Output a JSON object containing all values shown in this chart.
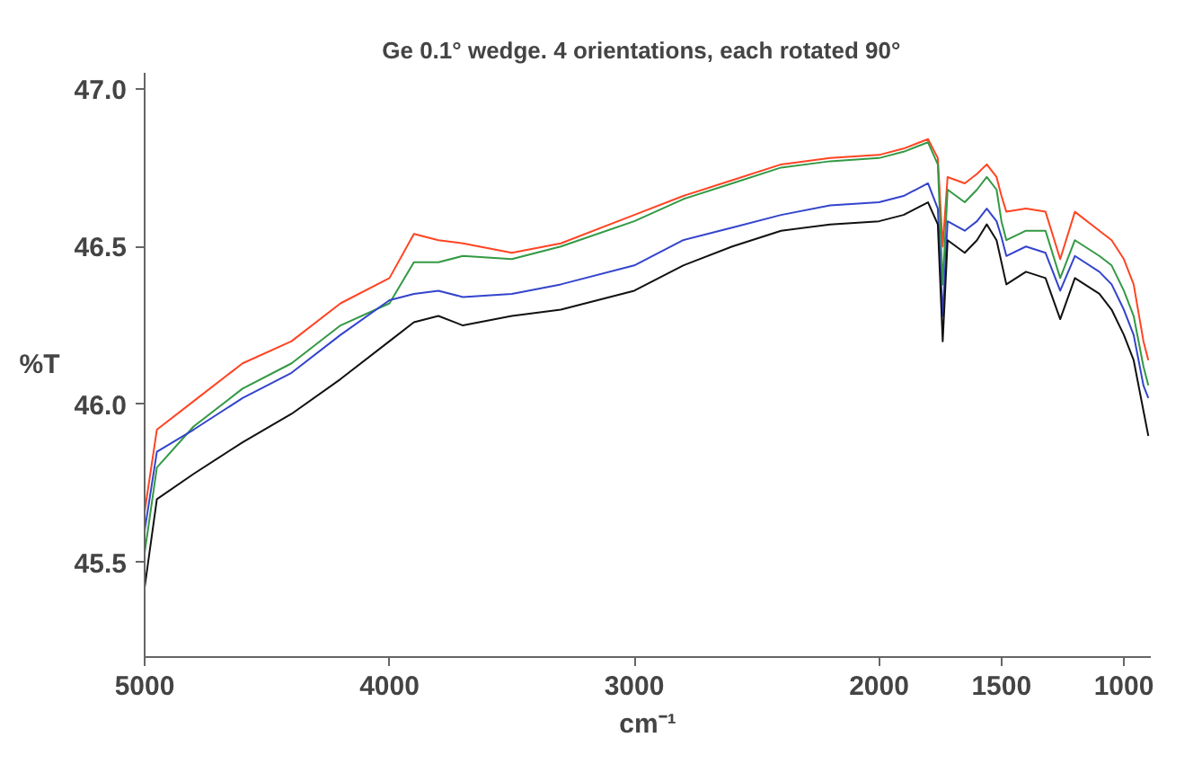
{
  "chart_data": {
    "type": "line",
    "title": "Ge 0.1° wedge.  4 orientations, each  rotated 90°",
    "xlabel": "cm⁻¹",
    "ylabel": "%T",
    "x": [
      5000,
      4950,
      4800,
      4600,
      4400,
      4200,
      4000,
      3900,
      3800,
      3700,
      3500,
      3300,
      3000,
      2800,
      2600,
      2400,
      2200,
      2000,
      1900,
      1800,
      1760,
      1740,
      1720,
      1650,
      1600,
      1560,
      1520,
      1500,
      1480,
      1400,
      1320,
      1260,
      1200,
      1100,
      1050,
      1000,
      960,
      920,
      900
    ],
    "series": [
      {
        "color": "#ff4422",
        "values": [
          45.66,
          45.92,
          46.01,
          46.13,
          46.2,
          46.32,
          46.4,
          46.54,
          46.52,
          46.51,
          46.48,
          46.51,
          46.6,
          46.66,
          46.71,
          46.76,
          46.78,
          46.79,
          46.81,
          46.84,
          46.78,
          46.5,
          46.72,
          46.7,
          46.73,
          46.76,
          46.72,
          46.66,
          46.61,
          46.62,
          46.61,
          46.46,
          46.61,
          46.55,
          46.52,
          46.46,
          46.38,
          46.2,
          46.14
        ]
      },
      {
        "color": "#339944",
        "values": [
          45.53,
          45.8,
          45.93,
          46.05,
          46.13,
          46.25,
          46.32,
          46.45,
          46.45,
          46.47,
          46.46,
          46.5,
          46.58,
          46.65,
          46.7,
          46.75,
          46.77,
          46.78,
          46.8,
          46.83,
          46.76,
          46.38,
          46.68,
          46.64,
          46.68,
          46.72,
          46.68,
          46.58,
          46.52,
          46.55,
          46.55,
          46.4,
          46.52,
          46.47,
          46.44,
          46.36,
          46.28,
          46.12,
          46.06
        ]
      },
      {
        "color": "#3344cc",
        "values": [
          45.6,
          45.85,
          45.92,
          46.02,
          46.1,
          46.22,
          46.33,
          46.35,
          46.36,
          46.34,
          46.35,
          46.38,
          46.44,
          46.52,
          46.56,
          46.6,
          46.63,
          46.64,
          46.66,
          46.7,
          46.62,
          46.28,
          46.58,
          46.55,
          46.58,
          46.62,
          46.58,
          46.53,
          46.47,
          46.5,
          46.48,
          46.36,
          46.47,
          46.42,
          46.38,
          46.3,
          46.22,
          46.06,
          46.02
        ]
      },
      {
        "color": "#111111",
        "values": [
          45.42,
          45.7,
          45.78,
          45.88,
          45.97,
          46.08,
          46.2,
          46.26,
          46.28,
          46.25,
          46.28,
          46.3,
          46.36,
          46.44,
          46.5,
          46.55,
          46.57,
          46.58,
          46.6,
          46.64,
          46.57,
          46.2,
          46.52,
          46.48,
          46.52,
          46.57,
          46.52,
          46.45,
          46.38,
          46.42,
          46.4,
          46.27,
          46.4,
          46.35,
          46.3,
          46.22,
          46.14,
          45.98,
          45.9
        ]
      }
    ],
    "xlim": [
      5000,
      890
    ],
    "xticks": [
      5000,
      4000,
      3000,
      2000,
      1500,
      1000
    ],
    "ylim": [
      45.2,
      47.05
    ],
    "yticks": [
      {
        "value": 45.5,
        "label": "45.5"
      },
      {
        "value": 46.0,
        "label": "46.0"
      },
      {
        "value": 46.5,
        "label": "46.5"
      },
      {
        "value": 47.0,
        "label": "47.0"
      }
    ],
    "line_style": "solid"
  }
}
